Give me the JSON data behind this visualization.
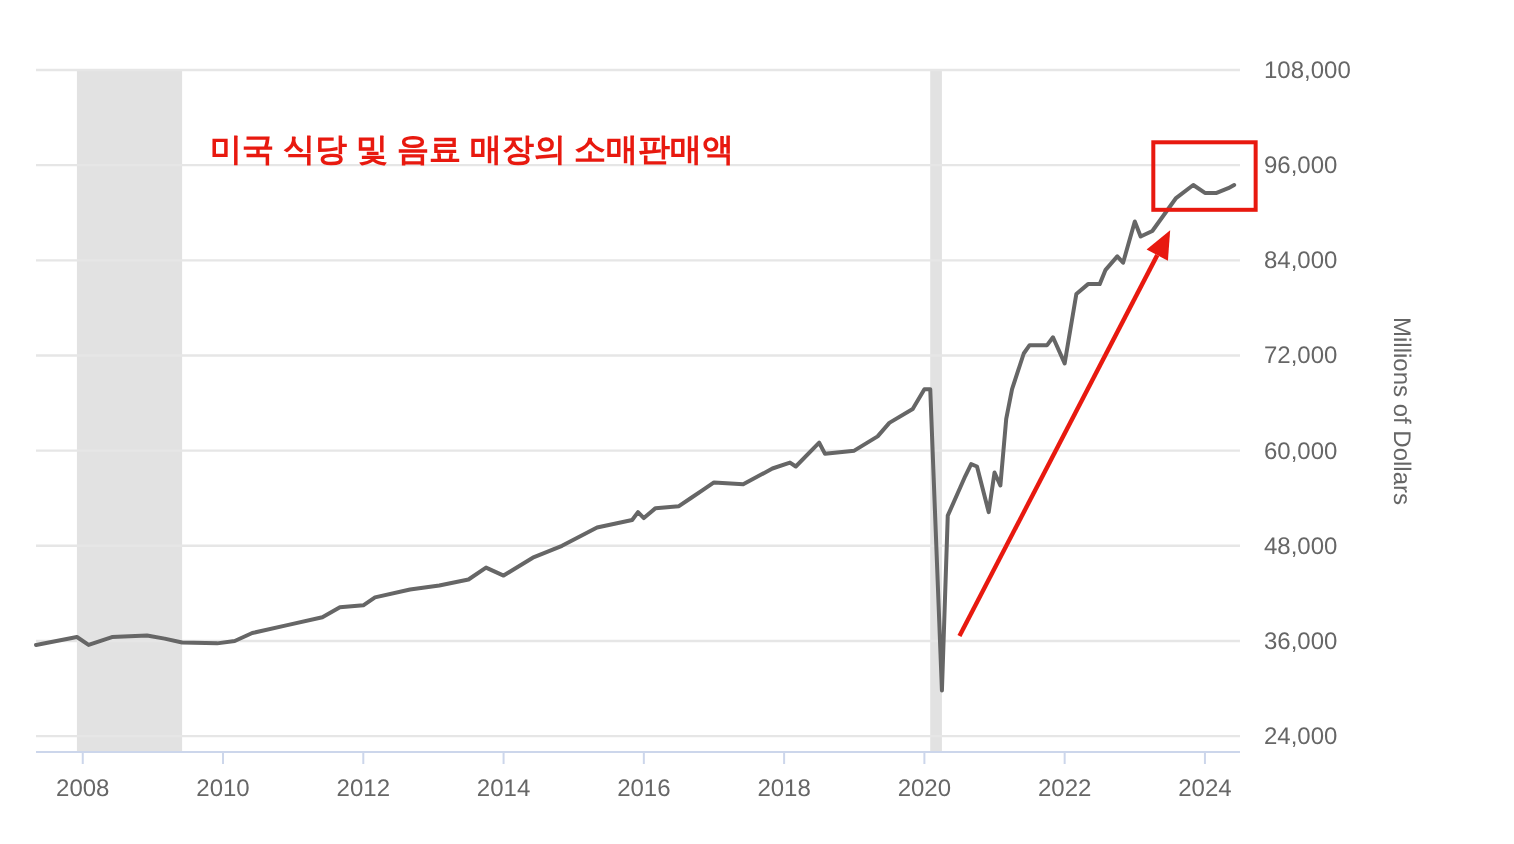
{
  "chart_data": {
    "type": "line",
    "title": "미국 식당 및 음료 매장의 소매판매액",
    "ylabel": "Millions of Dollars",
    "x": [
      "2007-05",
      "2007-12",
      "2008-02",
      "2008-06",
      "2008-12",
      "2009-03",
      "2009-06",
      "2009-12",
      "2010-03",
      "2010-06",
      "2010-12",
      "2011-06",
      "2011-09",
      "2012-01",
      "2012-03",
      "2012-09",
      "2013-02",
      "2013-07",
      "2013-10",
      "2014-01",
      "2014-06",
      "2014-11",
      "2015-05",
      "2015-11",
      "2015-12",
      "2016-01",
      "2016-03",
      "2016-07",
      "2016-09",
      "2016-11",
      "2017-01",
      "2017-06",
      "2017-11",
      "2018-02",
      "2018-03",
      "2018-07",
      "2018-08",
      "2019-01",
      "2019-05",
      "2019-07",
      "2019-11",
      "2020-01",
      "2020-02",
      "2020-04",
      "2020-05",
      "2020-08",
      "2020-09",
      "2020-10",
      "2020-12",
      "2021-01",
      "2021-02",
      "2021-03",
      "2021-04",
      "2021-06",
      "2021-07",
      "2021-10",
      "2021-11",
      "2022-01",
      "2022-03",
      "2022-05",
      "2022-07",
      "2022-08",
      "2022-10",
      "2022-11",
      "2023-01",
      "2023-02",
      "2023-04",
      "2023-06",
      "2023-08",
      "2023-11",
      "2024-01",
      "2024-03",
      "2024-05",
      "2024-06"
    ],
    "series": [
      {
        "color": "#666666",
        "values": [
          35500,
          36500,
          35500,
          36500,
          36700,
          36300,
          35800,
          35700,
          36000,
          37000,
          38000,
          39000,
          40250,
          40500,
          41500,
          42500,
          43000,
          43750,
          45250,
          44250,
          46500,
          48000,
          50300,
          51250,
          52250,
          51500,
          52750,
          53000,
          54000,
          55000,
          56000,
          55750,
          57750,
          58500,
          58000,
          61000,
          59600,
          60000,
          61800,
          63500,
          65250,
          67750,
          67750,
          29750,
          51800,
          56800,
          58300,
          58000,
          52250,
          57250,
          55600,
          64000,
          67750,
          72250,
          73300,
          73300,
          74300,
          71000,
          79750,
          81000,
          81000,
          82800,
          84500,
          83700,
          88900,
          87000,
          87700,
          89750,
          91800,
          93500,
          92500,
          92500,
          93100,
          93500
        ]
      }
    ],
    "xlim": [
      "2007-05",
      "2024-07"
    ],
    "xticks": [
      "2008",
      "2010",
      "2012",
      "2014",
      "2016",
      "2018",
      "2020",
      "2022",
      "2024"
    ],
    "ylim": [
      22000,
      108000
    ],
    "yticks": [
      {
        "value": 24000,
        "label": "24,000"
      },
      {
        "value": 36000,
        "label": "36,000"
      },
      {
        "value": 48000,
        "label": "48,000"
      },
      {
        "value": 60000,
        "label": "60,000"
      },
      {
        "value": 72000,
        "label": "72,000"
      },
      {
        "value": 84000,
        "label": "84,000"
      },
      {
        "value": 96000,
        "label": "96,000"
      },
      {
        "value": 108000,
        "label": "108,000"
      }
    ],
    "bands": [
      {
        "axis": "x",
        "from": "2007-12",
        "to": "2009-06",
        "color": "#e2e2e2"
      },
      {
        "axis": "x",
        "from": "2020-02",
        "to": "2020-04",
        "color": "#e2e2e2"
      }
    ],
    "grid": "y",
    "marker": "none",
    "line_style": "solid"
  }
}
